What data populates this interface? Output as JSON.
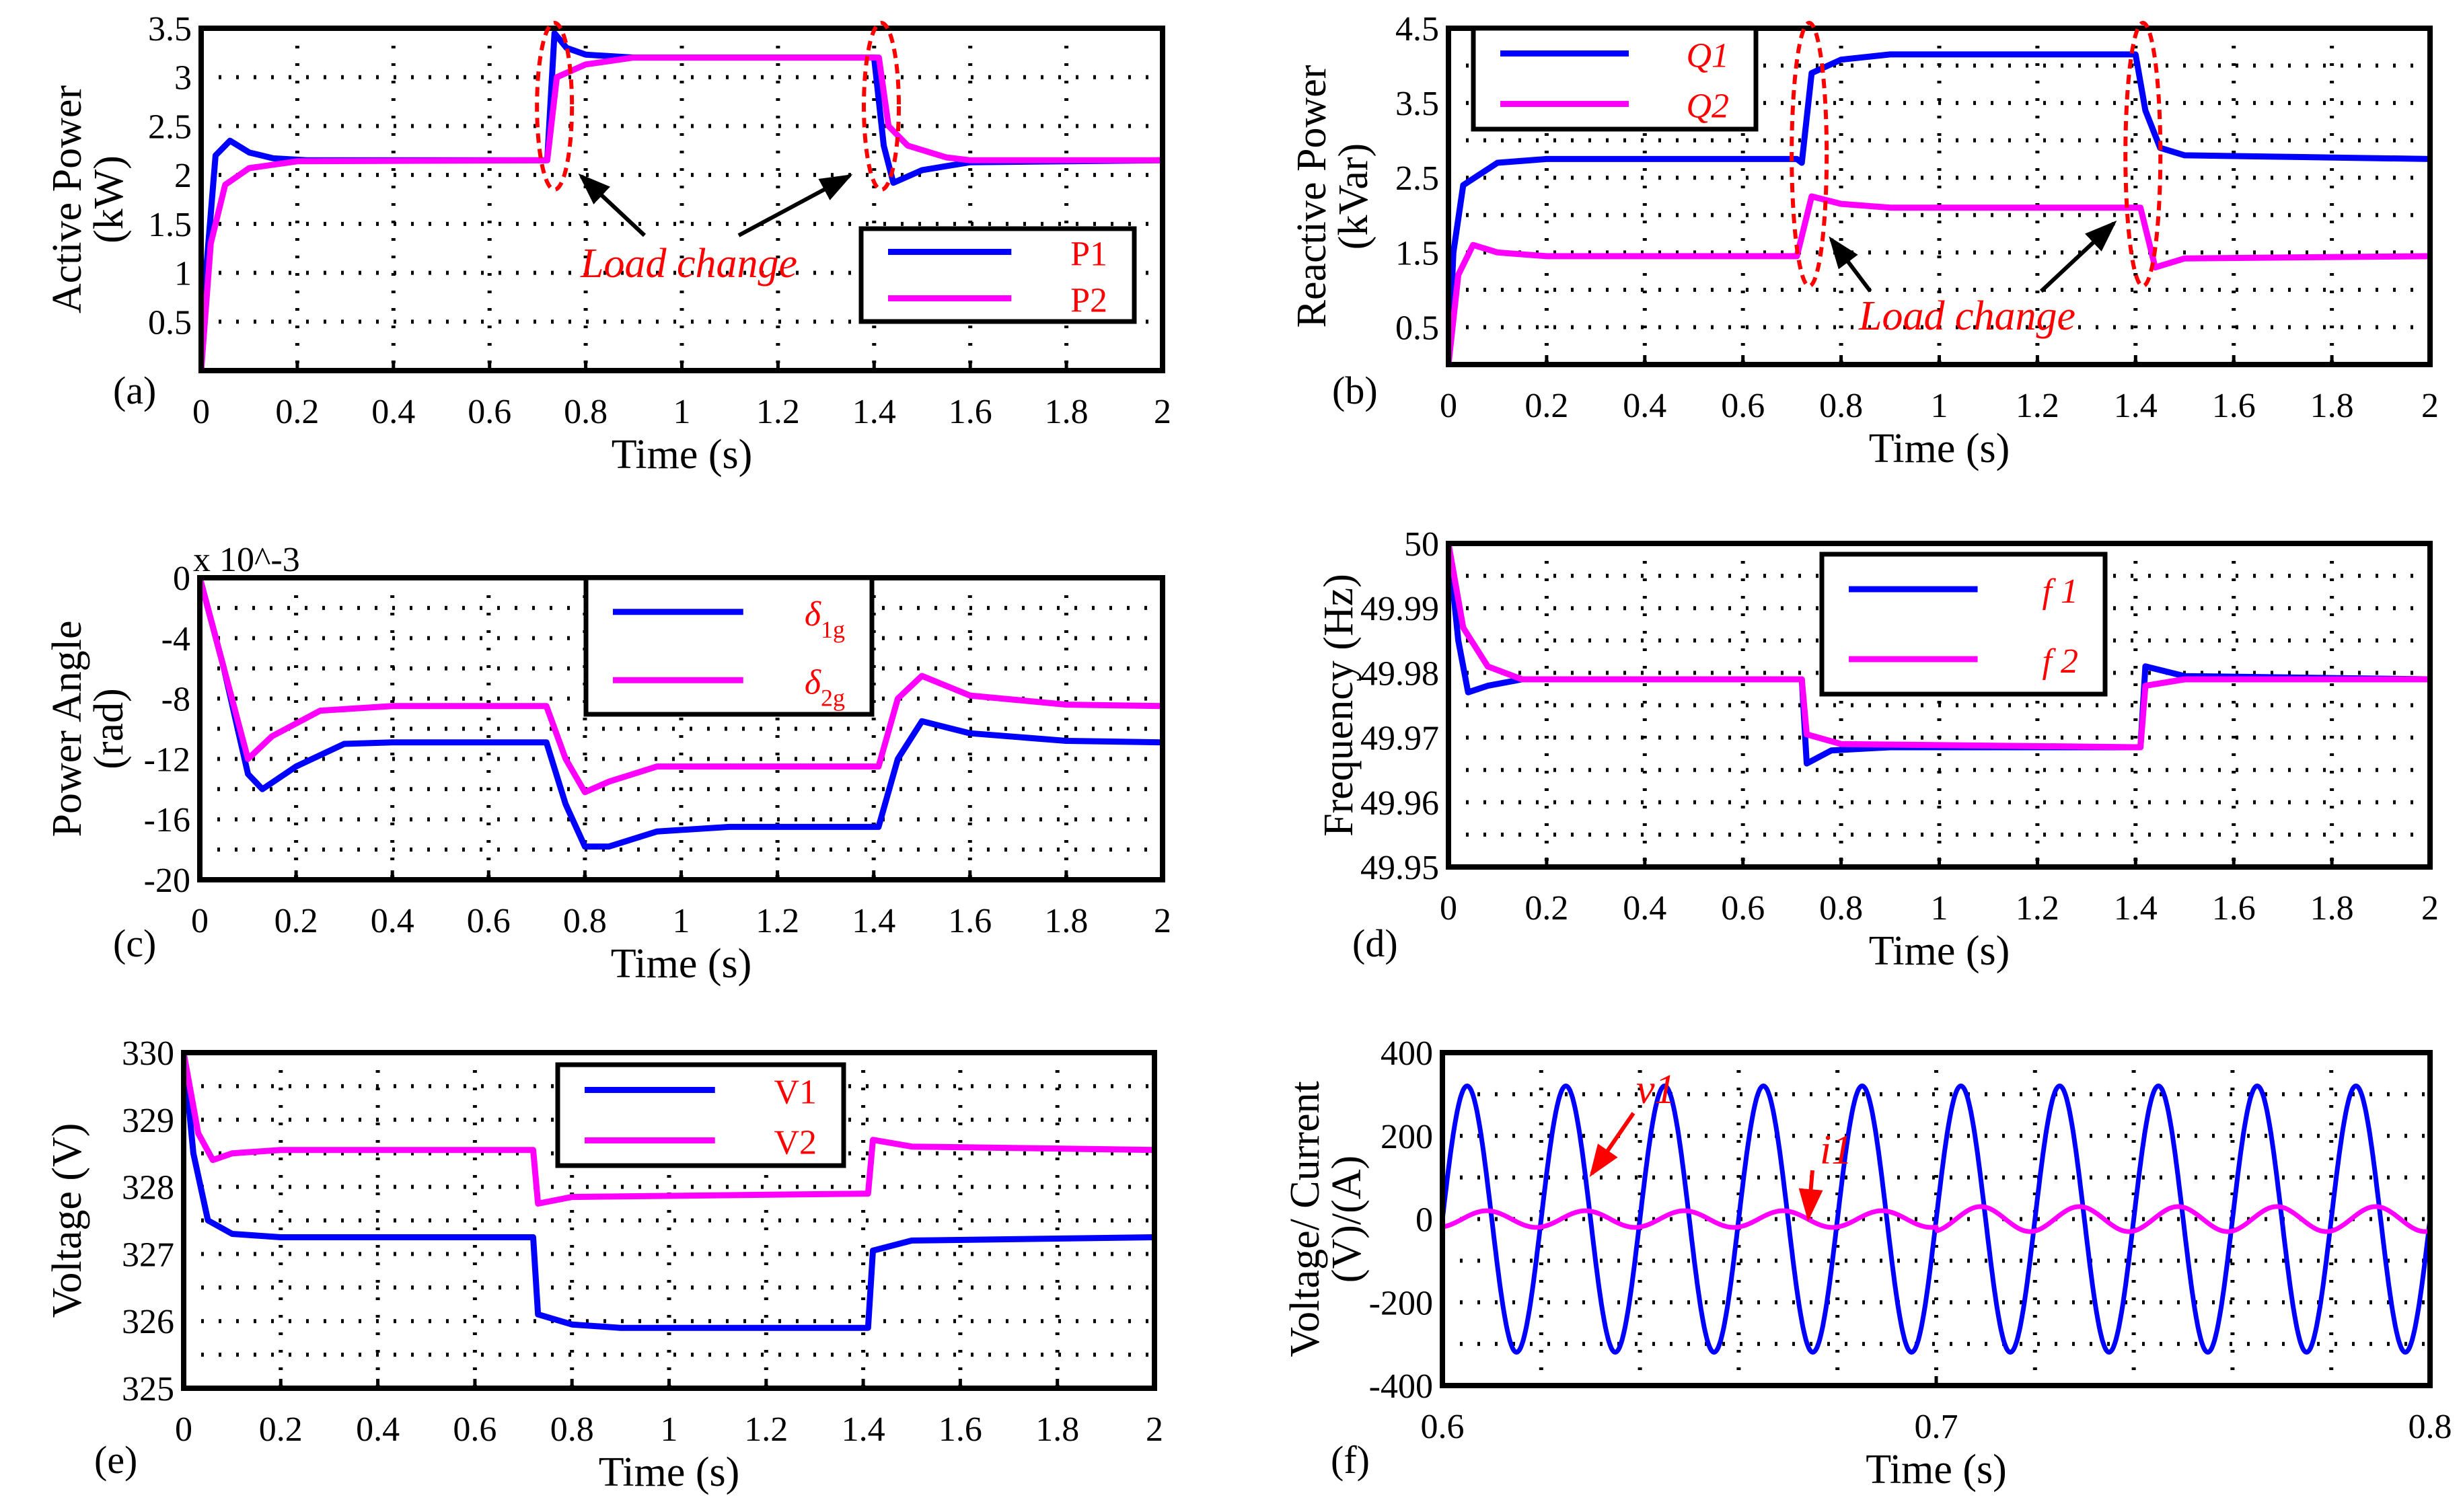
{
  "chart_data": [
    {
      "panel": "(a)",
      "type": "line",
      "ylabel": [
        "Active Power",
        "(kW)"
      ],
      "xlabel": "Time (s)",
      "xlim": [
        0,
        2
      ],
      "ylim": [
        0,
        3.5
      ],
      "xticks": [
        0,
        0.2,
        0.4,
        0.6,
        0.8,
        1,
        1.2,
        1.4,
        1.6,
        1.8,
        2
      ],
      "xtick_labels": [
        "0",
        "0.2",
        "0.4",
        "0.6",
        "0.8",
        "1",
        "1.2",
        "1.4",
        "1.6",
        "1.8",
        "2"
      ],
      "yticks": [
        0.5,
        1,
        1.5,
        2,
        2.5,
        3,
        3.5
      ],
      "ytick_labels": [
        "0.5",
        "1",
        "1.5",
        "2",
        "2.5",
        "3",
        "3.5"
      ],
      "ygrid": [
        0.5,
        1,
        1.5,
        2,
        2.5,
        3
      ],
      "grid": true,
      "legend": "bottom-right",
      "series": [
        {
          "name": "P1",
          "color": "#0000ff",
          "points": [
            [
              0,
              0
            ],
            [
              0.01,
              1.0
            ],
            [
              0.03,
              2.2
            ],
            [
              0.06,
              2.35
            ],
            [
              0.1,
              2.23
            ],
            [
              0.15,
              2.17
            ],
            [
              0.22,
              2.15
            ],
            [
              0.72,
              2.15
            ],
            [
              0.735,
              3.45
            ],
            [
              0.76,
              3.3
            ],
            [
              0.8,
              3.23
            ],
            [
              0.9,
              3.2
            ],
            [
              1.4,
              3.2
            ],
            [
              1.42,
              2.3
            ],
            [
              1.44,
              1.92
            ],
            [
              1.5,
              2.05
            ],
            [
              1.6,
              2.13
            ],
            [
              2,
              2.15
            ]
          ]
        },
        {
          "name": "P2",
          "color": "#ff00ff",
          "points": [
            [
              0,
              0
            ],
            [
              0.02,
              1.3
            ],
            [
              0.05,
              1.9
            ],
            [
              0.1,
              2.07
            ],
            [
              0.2,
              2.14
            ],
            [
              0.72,
              2.15
            ],
            [
              0.74,
              3.0
            ],
            [
              0.8,
              3.13
            ],
            [
              0.9,
              3.2
            ],
            [
              1.41,
              3.2
            ],
            [
              1.43,
              2.5
            ],
            [
              1.47,
              2.3
            ],
            [
              1.55,
              2.18
            ],
            [
              1.6,
              2.15
            ],
            [
              2,
              2.15
            ]
          ]
        }
      ],
      "annotation": "Load change",
      "ellipses": [
        [
          0.735,
          1.85,
          3.5
        ],
        [
          1.415,
          1.85,
          3.5
        ]
      ]
    },
    {
      "panel": "(b)",
      "type": "line",
      "ylabel": [
        "Reactive Power",
        "(kVar)"
      ],
      "xlabel": "Time (s)",
      "xlim": [
        0,
        2
      ],
      "ylim": [
        0,
        4.5
      ],
      "xticks": [
        0,
        0.2,
        0.4,
        0.6,
        0.8,
        1,
        1.2,
        1.4,
        1.6,
        1.8,
        2
      ],
      "xtick_labels": [
        "0",
        "0.2",
        "0.4",
        "0.6",
        "0.8",
        "1",
        "1.2",
        "1.4",
        "1.6",
        "1.8",
        "2"
      ],
      "yticks": [
        0.5,
        1.5,
        2.5,
        3.5,
        4.5
      ],
      "ytick_labels": [
        "0.5",
        "1.5",
        "2.5",
        "3.5",
        "4.5"
      ],
      "ygrid": [
        0.5,
        1,
        1.5,
        2,
        2.5,
        3,
        3.5,
        4
      ],
      "grid": true,
      "legend": "top-left",
      "series": [
        {
          "name": "Q1",
          "color": "#0000ff",
          "points": [
            [
              0,
              0
            ],
            [
              0.01,
              1.5
            ],
            [
              0.03,
              2.4
            ],
            [
              0.1,
              2.7
            ],
            [
              0.2,
              2.75
            ],
            [
              0.71,
              2.75
            ],
            [
              0.72,
              2.7
            ],
            [
              0.74,
              3.9
            ],
            [
              0.8,
              4.08
            ],
            [
              0.9,
              4.15
            ],
            [
              1.4,
              4.15
            ],
            [
              1.42,
              3.4
            ],
            [
              1.45,
              2.9
            ],
            [
              1.5,
              2.8
            ],
            [
              2,
              2.75
            ]
          ]
        },
        {
          "name": "Q2",
          "color": "#ff00ff",
          "points": [
            [
              0,
              0
            ],
            [
              0.02,
              1.2
            ],
            [
              0.05,
              1.6
            ],
            [
              0.1,
              1.5
            ],
            [
              0.2,
              1.45
            ],
            [
              0.71,
              1.45
            ],
            [
              0.74,
              2.25
            ],
            [
              0.8,
              2.15
            ],
            [
              0.9,
              2.1
            ],
            [
              1.41,
              2.1
            ],
            [
              1.44,
              1.3
            ],
            [
              1.5,
              1.42
            ],
            [
              2,
              1.45
            ]
          ]
        }
      ],
      "annotation": "Load change",
      "ellipses": [
        [
          0.735,
          1.05,
          4.5
        ],
        [
          1.415,
          1.05,
          4.5
        ]
      ]
    },
    {
      "panel": "(c)",
      "type": "line",
      "ylabel": [
        "Power Angle",
        "(rad)"
      ],
      "xlabel": "Time (s)",
      "xlim": [
        0,
        2
      ],
      "ylim": [
        -20,
        0
      ],
      "exponent_label": "x 10^-3",
      "xticks": [
        0,
        0.2,
        0.4,
        0.6,
        0.8,
        1,
        1.2,
        1.4,
        1.6,
        1.8,
        2
      ],
      "xtick_labels": [
        "0",
        "0.2",
        "0.4",
        "0.6",
        "0.8",
        "1",
        "1.2",
        "1.4",
        "1.6",
        "1.8",
        "2"
      ],
      "yticks": [
        0,
        -4,
        -8,
        -12,
        -16,
        -20
      ],
      "ytick_labels": [
        "0",
        "-4",
        "-8",
        "-12",
        "-16",
        "-20"
      ],
      "ygrid": [
        -2,
        -4,
        -6,
        -8,
        -10,
        -12,
        -14,
        -16,
        -18
      ],
      "grid": true,
      "legend": "top-center",
      "series": [
        {
          "name": "δ1g",
          "color": "#0000ff",
          "points": [
            [
              0,
              0
            ],
            [
              0.05,
              -6
            ],
            [
              0.1,
              -13
            ],
            [
              0.13,
              -14
            ],
            [
              0.2,
              -12.5
            ],
            [
              0.3,
              -11
            ],
            [
              0.4,
              -10.9
            ],
            [
              0.72,
              -10.9
            ],
            [
              0.76,
              -15
            ],
            [
              0.8,
              -17.8
            ],
            [
              0.85,
              -17.8
            ],
            [
              0.95,
              -16.8
            ],
            [
              1.1,
              -16.5
            ],
            [
              1.41,
              -16.5
            ],
            [
              1.45,
              -12
            ],
            [
              1.5,
              -9.5
            ],
            [
              1.6,
              -10.3
            ],
            [
              1.8,
              -10.8
            ],
            [
              2,
              -10.9
            ]
          ]
        },
        {
          "name": "δ2g",
          "color": "#ff00ff",
          "points": [
            [
              0,
              0
            ],
            [
              0.05,
              -6
            ],
            [
              0.1,
              -12
            ],
            [
              0.15,
              -10.5
            ],
            [
              0.25,
              -8.8
            ],
            [
              0.4,
              -8.5
            ],
            [
              0.72,
              -8.5
            ],
            [
              0.76,
              -12
            ],
            [
              0.8,
              -14.2
            ],
            [
              0.85,
              -13.5
            ],
            [
              0.95,
              -12.5
            ],
            [
              1.41,
              -12.5
            ],
            [
              1.45,
              -8
            ],
            [
              1.5,
              -6.5
            ],
            [
              1.6,
              -7.8
            ],
            [
              1.8,
              -8.4
            ],
            [
              2,
              -8.5
            ]
          ]
        }
      ]
    },
    {
      "panel": "(d)",
      "type": "line",
      "ylabel": [
        "Frequency (Hz)"
      ],
      "xlabel": "Time (s)",
      "xlim": [
        0,
        2
      ],
      "ylim": [
        49.95,
        50
      ],
      "xticks": [
        0,
        0.2,
        0.4,
        0.6,
        0.8,
        1,
        1.2,
        1.4,
        1.6,
        1.8,
        2
      ],
      "xtick_labels": [
        "0",
        "0.2",
        "0.4",
        "0.6",
        "0.8",
        "1",
        "1.2",
        "1.4",
        "1.6",
        "1.8",
        "2"
      ],
      "yticks": [
        50,
        49.99,
        49.98,
        49.97,
        49.96,
        49.95
      ],
      "ytick_labels": [
        "50",
        "49.99",
        "49.98",
        "49.97",
        "49.96",
        "49.95"
      ],
      "ygrid": [
        49.955,
        49.96,
        49.965,
        49.97,
        49.975,
        49.98,
        49.985,
        49.99,
        49.995
      ],
      "grid": true,
      "legend": "top-right",
      "series": [
        {
          "name": "f 1",
          "color": "#0000ff",
          "points": [
            [
              0,
              50
            ],
            [
              0.02,
              49.985
            ],
            [
              0.04,
              49.977
            ],
            [
              0.08,
              49.978
            ],
            [
              0.15,
              49.979
            ],
            [
              0.72,
              49.979
            ],
            [
              0.73,
              49.966
            ],
            [
              0.78,
              49.968
            ],
            [
              0.9,
              49.9685
            ],
            [
              1.41,
              49.9685
            ],
            [
              1.42,
              49.981
            ],
            [
              1.5,
              49.9795
            ],
            [
              2,
              49.979
            ]
          ]
        },
        {
          "name": "f 2",
          "color": "#ff00ff",
          "points": [
            [
              0,
              50
            ],
            [
              0.03,
              49.987
            ],
            [
              0.08,
              49.981
            ],
            [
              0.15,
              49.979
            ],
            [
              0.72,
              49.979
            ],
            [
              0.73,
              49.9705
            ],
            [
              0.8,
              49.969
            ],
            [
              1.41,
              49.9685
            ],
            [
              1.42,
              49.978
            ],
            [
              1.5,
              49.979
            ],
            [
              2,
              49.979
            ]
          ]
        }
      ]
    },
    {
      "panel": "(e)",
      "type": "line",
      "ylabel": [
        "Voltage (V)"
      ],
      "xlabel": "Time (s)",
      "xlim": [
        0,
        2
      ],
      "ylim": [
        325,
        330
      ],
      "xticks": [
        0,
        0.2,
        0.4,
        0.6,
        0.8,
        1,
        1.2,
        1.4,
        1.6,
        1.8,
        2
      ],
      "xtick_labels": [
        "0",
        "0.2",
        "0.4",
        "0.6",
        "0.8",
        "1",
        "1.2",
        "1.4",
        "1.6",
        "1.8",
        "2"
      ],
      "yticks": [
        325,
        326,
        327,
        328,
        329,
        330
      ],
      "ytick_labels": [
        "325",
        "326",
        "327",
        "328",
        "329",
        "330"
      ],
      "ygrid": [
        325.5,
        326,
        326.5,
        327,
        327.5,
        328,
        328.5,
        329,
        329.5
      ],
      "grid": true,
      "legend": "top-center",
      "series": [
        {
          "name": "V1",
          "color": "#0000ff",
          "points": [
            [
              0,
              330
            ],
            [
              0.02,
              328.5
            ],
            [
              0.05,
              327.5
            ],
            [
              0.1,
              327.3
            ],
            [
              0.2,
              327.25
            ],
            [
              0.72,
              327.25
            ],
            [
              0.73,
              326.1
            ],
            [
              0.8,
              325.95
            ],
            [
              0.9,
              325.9
            ],
            [
              1.41,
              325.9
            ],
            [
              1.42,
              327.05
            ],
            [
              1.5,
              327.2
            ],
            [
              2,
              327.25
            ]
          ]
        },
        {
          "name": "V2",
          "color": "#ff00ff",
          "points": [
            [
              0,
              330
            ],
            [
              0.03,
              328.8
            ],
            [
              0.06,
              328.4
            ],
            [
              0.1,
              328.5
            ],
            [
              0.2,
              328.55
            ],
            [
              0.72,
              328.55
            ],
            [
              0.73,
              327.75
            ],
            [
              0.8,
              327.85
            ],
            [
              1.41,
              327.9
            ],
            [
              1.42,
              328.7
            ],
            [
              1.5,
              328.6
            ],
            [
              2,
              328.55
            ]
          ]
        }
      ]
    },
    {
      "panel": "(f)",
      "type": "line",
      "ylabel": [
        "Voltage/ Current",
        "(V)/(A)"
      ],
      "xlabel": "Time (s)",
      "xlim": [
        0.6,
        0.8
      ],
      "ylim": [
        -400,
        400
      ],
      "xticks": [
        0.6,
        0.7,
        0.8
      ],
      "xtick_labels": [
        "0.6",
        "0.7",
        "0.8"
      ],
      "xgrid": [
        0.62,
        0.64,
        0.66,
        0.68,
        0.7,
        0.72,
        0.74,
        0.76,
        0.78
      ],
      "yticks": [
        400,
        200,
        0,
        -200,
        -400
      ],
      "ytick_labels": [
        "400",
        "200",
        "0",
        "-200",
        "-400"
      ],
      "ygrid": [
        300,
        200,
        100,
        0,
        -100,
        -200,
        -300
      ],
      "grid": true,
      "series": [
        {
          "name": "v1",
          "color": "#0000ff",
          "sine": {
            "frequency_hz": 50,
            "amplitude": [
              320,
              320
            ],
            "delay_s": 0,
            "step_time": 0.7
          }
        },
        {
          "name": "i1",
          "color": "#ff00ff",
          "sine": {
            "frequency_hz": 50,
            "amplitude": [
              20,
              30
            ],
            "delay_s": 0.004,
            "step_time": 0.7
          }
        }
      ],
      "labels": [
        "v1",
        "i1"
      ]
    }
  ]
}
